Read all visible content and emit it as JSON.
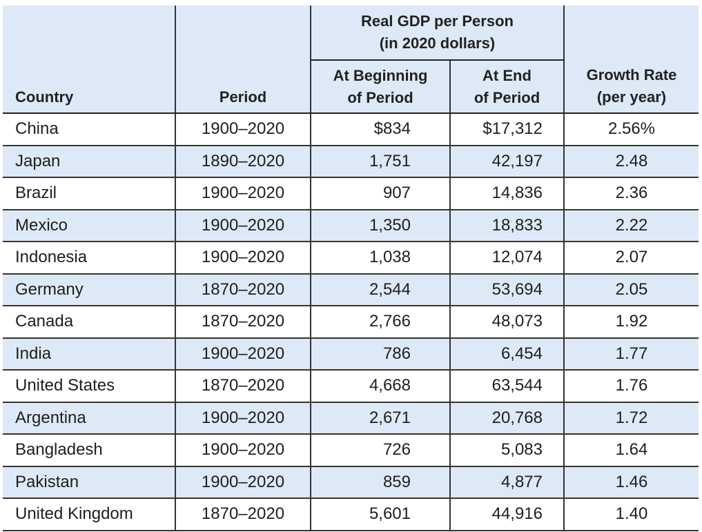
{
  "table": {
    "headers": {
      "group_line1": "Real GDP per Person",
      "group_line2": "(in 2020 dollars)",
      "country": "Country",
      "period": "Period",
      "begin_line1": "At Beginning",
      "begin_line2": "of Period",
      "end_line1": "At End",
      "end_line2": "of Period",
      "growth_line1": "Growth Rate",
      "growth_line2": "(per year)"
    },
    "rows": [
      {
        "country": "China",
        "period": "1900–2020",
        "begin": "$834",
        "end": "$17,312",
        "growth": "2.56%"
      },
      {
        "country": "Japan",
        "period": "1890–2020",
        "begin": "1,751",
        "end": "42,197",
        "growth": "2.48"
      },
      {
        "country": "Brazil",
        "period": "1900–2020",
        "begin": "907",
        "end": "14,836",
        "growth": "2.36"
      },
      {
        "country": "Mexico",
        "period": "1900–2020",
        "begin": "1,350",
        "end": "18,833",
        "growth": "2.22"
      },
      {
        "country": "Indonesia",
        "period": "1900–2020",
        "begin": "1,038",
        "end": "12,074",
        "growth": "2.07"
      },
      {
        "country": "Germany",
        "period": "1870–2020",
        "begin": "2,544",
        "end": "53,694",
        "growth": "2.05"
      },
      {
        "country": "Canada",
        "period": "1870–2020",
        "begin": "2,766",
        "end": "48,073",
        "growth": "1.92"
      },
      {
        "country": "India",
        "period": "1900–2020",
        "begin": "786",
        "end": "6,454",
        "growth": "1.77"
      },
      {
        "country": "United States",
        "period": "1870–2020",
        "begin": "4,668",
        "end": "63,544",
        "growth": "1.76"
      },
      {
        "country": "Argentina",
        "period": "1900–2020",
        "begin": "2,671",
        "end": "20,768",
        "growth": "1.72"
      },
      {
        "country": "Bangladesh",
        "period": "1900–2020",
        "begin": "726",
        "end": "5,083",
        "growth": "1.64"
      },
      {
        "country": "Pakistan",
        "period": "1900–2020",
        "begin": "859",
        "end": "4,877",
        "growth": "1.46"
      },
      {
        "country": "United Kingdom",
        "period": "1870–2020",
        "begin": "5,601",
        "end": "44,916",
        "growth": "1.40"
      }
    ]
  },
  "colors": {
    "header_background": "#dde9f6",
    "stripe_background": "#dde9f6",
    "rule_color": "#333333"
  }
}
